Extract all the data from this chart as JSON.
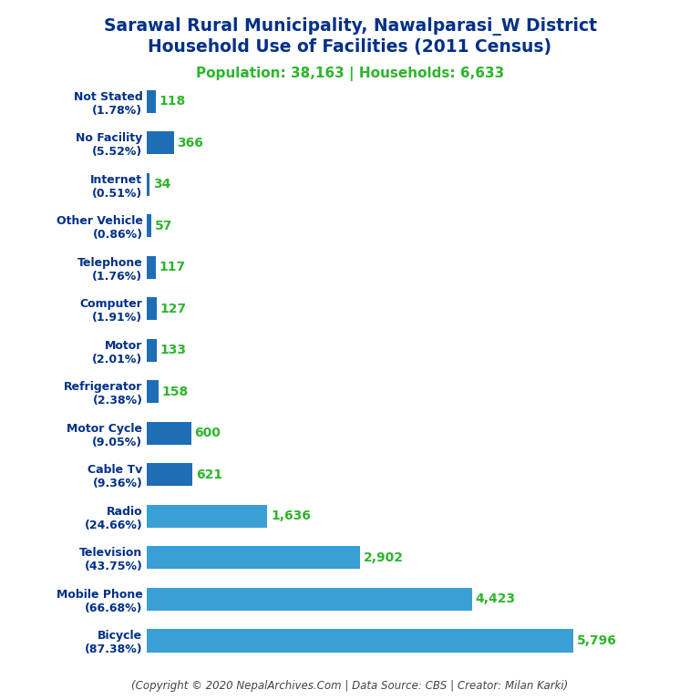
{
  "title_line1": "Sarawal Rural Municipality, Nawalparasi_W District",
  "title_line2": "Household Use of Facilities (2011 Census)",
  "subtitle": "Population: 38,163 | Households: 6,633",
  "footer": "(Copyright © 2020 NepalArchives.Com | Data Source: CBS | Creator: Milan Karki)",
  "categories": [
    "Bicycle\n(87.38%)",
    "Mobile Phone\n(66.68%)",
    "Television\n(43.75%)",
    "Radio\n(24.66%)",
    "Cable Tv\n(9.36%)",
    "Motor Cycle\n(9.05%)",
    "Refrigerator\n(2.38%)",
    "Motor\n(2.01%)",
    "Computer\n(1.91%)",
    "Telephone\n(1.76%)",
    "Other Vehicle\n(0.86%)",
    "Internet\n(0.51%)",
    "No Facility\n(5.52%)",
    "Not Stated\n(1.78%)"
  ],
  "values": [
    5796,
    4423,
    2902,
    1636,
    621,
    600,
    158,
    133,
    127,
    117,
    57,
    34,
    366,
    118
  ],
  "bar_colors": [
    "#3a9fd4",
    "#3a9fd4",
    "#3a9fd4",
    "#3a9fd4",
    "#1f6eb5",
    "#1f6eb5",
    "#1f6eb5",
    "#1f6eb5",
    "#1f6eb5",
    "#1f6eb5",
    "#1f6eb5",
    "#1f6eb5",
    "#1f6eb5",
    "#1f6eb5"
  ],
  "title_color": "#003087",
  "subtitle_color": "#2db52d",
  "label_color": "#2db52d",
  "background_color": "#ffffff",
  "title_fontsize": 13.5,
  "subtitle_fontsize": 11,
  "label_fontsize": 10,
  "category_fontsize": 9,
  "footer_fontsize": 8.5
}
